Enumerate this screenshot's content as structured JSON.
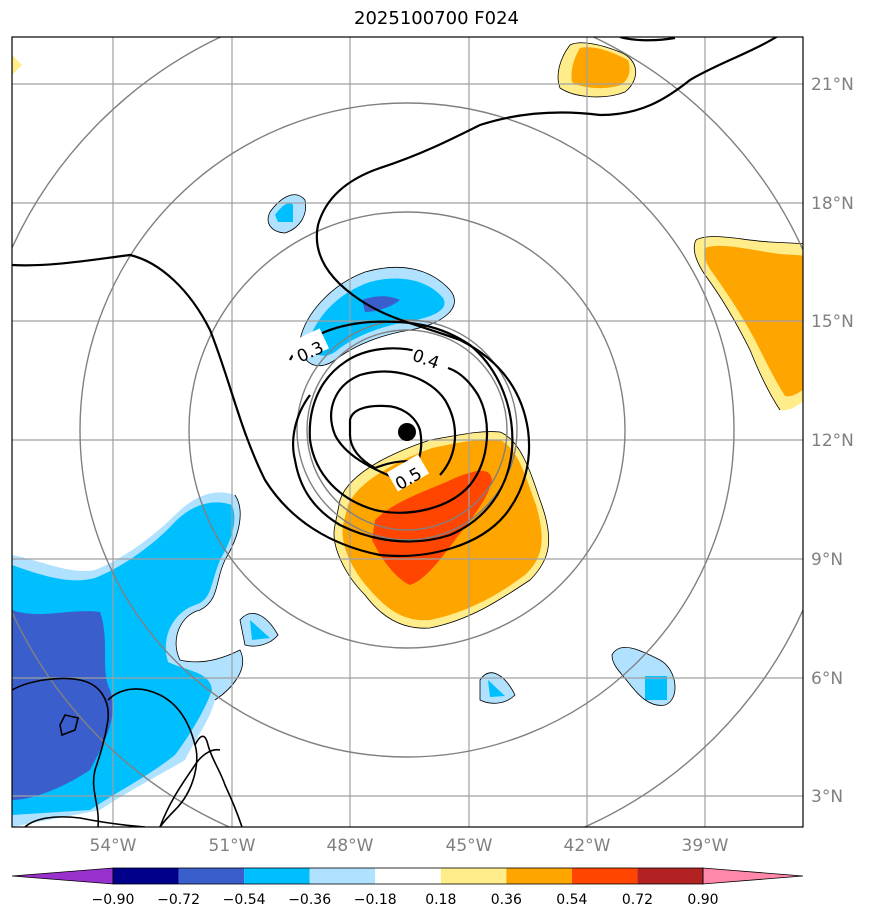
{
  "title": "2025100700 F024",
  "lon_ticks": [
    "54°W",
    "51°W",
    "48°W",
    "45°W",
    "42°W",
    "39°W"
  ],
  "lat_ticks": [
    "3°N",
    "6°N",
    "9°N",
    "12°N",
    "15°N",
    "18°N",
    "21°N"
  ],
  "colorbar": {
    "labels": [
      "−0.90",
      "−0.72",
      "−0.54",
      "−0.36",
      "−0.18",
      "0.18",
      "0.36",
      "0.54",
      "0.72",
      "0.90"
    ],
    "colors": [
      "#9932cc",
      "#00008b",
      "#3a5fcd",
      "#00bfff",
      "#b0e2ff",
      "#ffffff",
      "#ffec8b",
      "#ffa500",
      "#ff4500",
      "#b22222",
      "#ff88aa"
    ]
  },
  "contour_labels": [
    "0.3",
    "0.4",
    "0.5"
  ],
  "storm_center": {
    "lon": "46.5°W",
    "lat": "12.2°N"
  }
}
